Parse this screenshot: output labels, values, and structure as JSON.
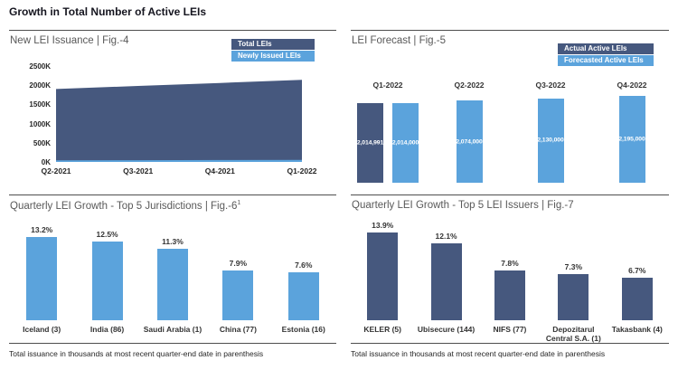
{
  "page_title": "Growth in Total Number of Active LEIs",
  "colors": {
    "dark": "#46587E",
    "light": "#5BA3DC"
  },
  "chart_data": [
    {
      "id": "fig4",
      "type": "area",
      "title": "New LEI Issuance | Fig.-4",
      "x": [
        "Q2-2021",
        "Q3-2021",
        "Q4-2021",
        "Q1-2022"
      ],
      "y_ticks": [
        "2500K",
        "2000K",
        "1500K",
        "1000K",
        "500K",
        "0K"
      ],
      "ylim": [
        0,
        2500000
      ],
      "legend_position": "top-right",
      "legend": [
        {
          "label": "Total LEIs",
          "color_key": "dark"
        },
        {
          "label": "Newly Issued LEIs",
          "color_key": "light"
        }
      ],
      "series": [
        {
          "name": "Total LEIs",
          "color_key": "dark",
          "values": [
            1900000,
            1980000,
            2060000,
            2140000
          ]
        },
        {
          "name": "Newly Issued LEIs",
          "color_key": "light",
          "values": [
            40000,
            45000,
            50000,
            55000
          ]
        }
      ]
    },
    {
      "id": "fig5",
      "type": "bar",
      "title": "LEI Forecast | Fig.-5",
      "categories": [
        "Q1-2022",
        "Q2-2022",
        "Q3-2022",
        "Q4-2022"
      ],
      "legend_position": "top-right",
      "legend": [
        {
          "label": "Actual Active LEIs",
          "color_key": "dark"
        },
        {
          "label": "Forecasted Active LEIs",
          "color_key": "light"
        }
      ],
      "series": [
        {
          "name": "Actual Active LEIs",
          "color_key": "dark",
          "values": [
            2014991,
            null,
            null,
            null
          ],
          "value_labels": [
            "2,014,991",
            null,
            null,
            null
          ]
        },
        {
          "name": "Forecasted Active LEIs",
          "color_key": "light",
          "values": [
            2014000,
            2074000,
            2130000,
            2195000
          ],
          "value_labels": [
            "2,014,000",
            "2,074,000",
            "2,130,000",
            "2,195,000"
          ]
        }
      ]
    },
    {
      "id": "fig6",
      "type": "bar",
      "title": "Quarterly LEI Growth - Top 5 Jurisdictions | Fig.-6",
      "title_sup": "1",
      "categories": [
        "Iceland (3)",
        "India (86)",
        "Saudi Arabia (1)",
        "China (77)",
        "Estonia (16)"
      ],
      "values": [
        13.2,
        12.5,
        11.3,
        7.9,
        7.6
      ],
      "value_labels": [
        "13.2%",
        "12.5%",
        "11.3%",
        "7.9%",
        "7.6%"
      ],
      "color_key": "light",
      "footnote": "Total issuance in thousands at most recent quarter-end date in parenthesis"
    },
    {
      "id": "fig7",
      "type": "bar",
      "title": "Quarterly LEI Growth - Top 5 LEI Issuers | Fig.-7",
      "categories": [
        "KELER (5)",
        "Ubisecure (144)",
        "NIFS (77)",
        "Depozitarul Central S.A. (1)",
        "Takasbank (4)"
      ],
      "values": [
        13.9,
        12.1,
        7.8,
        7.3,
        6.7
      ],
      "value_labels": [
        "13.9%",
        "12.1%",
        "7.8%",
        "7.3%",
        "6.7%"
      ],
      "color_key": "dark",
      "footnote": "Total issuance in thousands at most recent quarter-end date in parenthesis"
    }
  ]
}
